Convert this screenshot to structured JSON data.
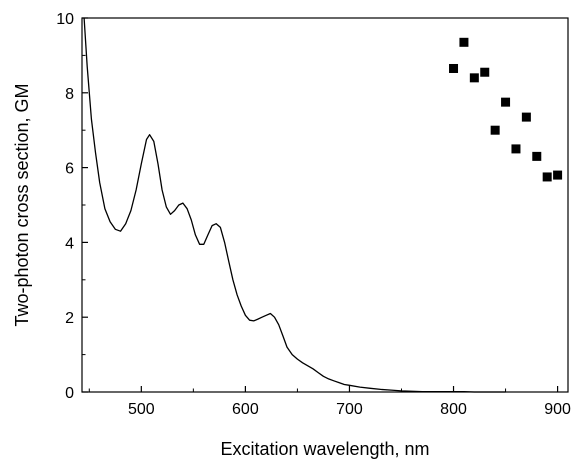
{
  "chart_data": {
    "type": "line",
    "title": "",
    "xlabel": "Excitation wavelength, nm",
    "ylabel": "Two-photon cross section, GM",
    "xlim": [
      443,
      910
    ],
    "ylim": [
      0,
      10
    ],
    "x_ticks": [
      500,
      600,
      700,
      800,
      900
    ],
    "y_ticks": [
      0,
      2,
      4,
      6,
      8,
      10
    ],
    "x_tick_labels": [
      "500",
      "600",
      "700",
      "800",
      "900"
    ],
    "y_tick_labels": [
      "0",
      "2",
      "4",
      "6",
      "8",
      "10"
    ],
    "grid": false,
    "legend": "none",
    "colors": {
      "line": "#000000",
      "marker": "#000000"
    },
    "series": [
      {
        "kind": "line",
        "x": [
          445,
          448,
          452,
          456,
          460,
          465,
          470,
          475,
          480,
          485,
          490,
          495,
          500,
          505,
          508,
          512,
          516,
          520,
          524,
          528,
          532,
          536,
          540,
          544,
          548,
          552,
          556,
          560,
          564,
          568,
          572,
          576,
          580,
          584,
          588,
          592,
          596,
          600,
          604,
          608,
          612,
          616,
          620,
          624,
          628,
          632,
          636,
          640,
          645,
          650,
          655,
          660,
          665,
          670,
          675,
          680,
          685,
          690,
          695,
          700,
          710,
          720,
          730,
          740,
          750,
          760,
          770,
          780,
          790,
          800,
          810,
          820,
          830,
          840,
          850
        ],
        "y": [
          10.0,
          8.7,
          7.3,
          6.4,
          5.6,
          4.9,
          4.55,
          4.35,
          4.3,
          4.5,
          4.85,
          5.4,
          6.1,
          6.75,
          6.88,
          6.7,
          6.1,
          5.4,
          4.95,
          4.75,
          4.85,
          5.0,
          5.05,
          4.9,
          4.6,
          4.2,
          3.95,
          3.95,
          4.2,
          4.45,
          4.5,
          4.4,
          4.0,
          3.5,
          3.0,
          2.6,
          2.3,
          2.05,
          1.92,
          1.9,
          1.95,
          2.0,
          2.05,
          2.1,
          2.0,
          1.8,
          1.5,
          1.2,
          1.0,
          0.88,
          0.78,
          0.7,
          0.62,
          0.52,
          0.42,
          0.35,
          0.3,
          0.25,
          0.2,
          0.18,
          0.13,
          0.1,
          0.07,
          0.05,
          0.03,
          0.02,
          0.01,
          0.01,
          0.01,
          0.01,
          0.01,
          0.0,
          0.0,
          0.0,
          0.0
        ]
      },
      {
        "kind": "scatter",
        "x": [
          800,
          810,
          820,
          830,
          840,
          850,
          860,
          870,
          880,
          890,
          900
        ],
        "y": [
          8.65,
          9.35,
          8.4,
          8.55,
          7.0,
          7.75,
          6.5,
          7.35,
          6.3,
          5.75,
          5.8
        ]
      }
    ]
  }
}
